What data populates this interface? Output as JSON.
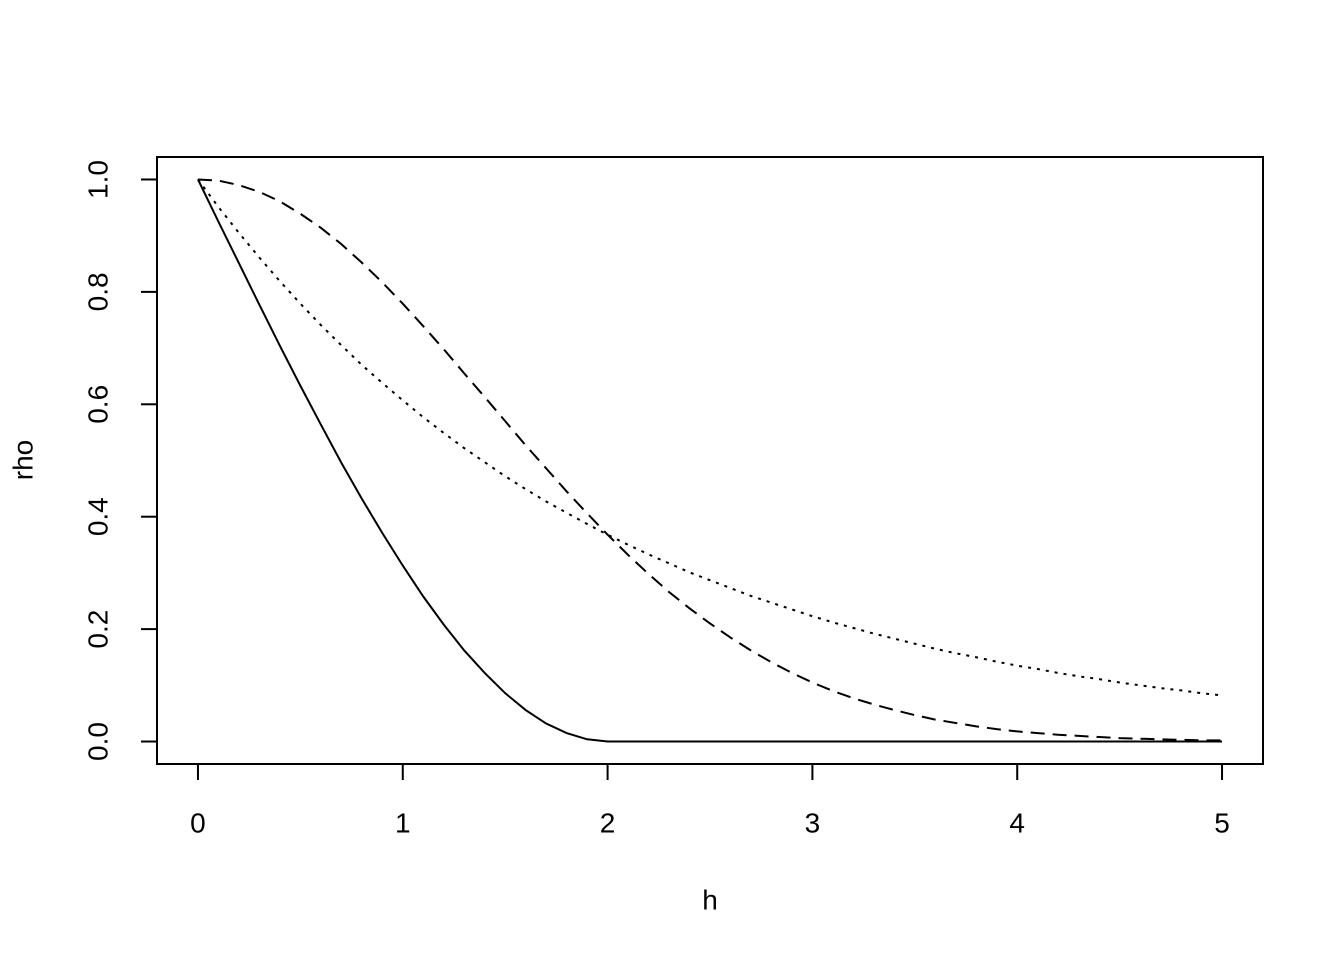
{
  "chart_data": {
    "type": "line",
    "x_label": "h",
    "y_label": "rho",
    "x": [
      0,
      0.1,
      0.2,
      0.3,
      0.4,
      0.5,
      0.6,
      0.7,
      0.8,
      0.9,
      1.0,
      1.1,
      1.2,
      1.3,
      1.4,
      1.5,
      1.6,
      1.7,
      1.8,
      1.9,
      2.0,
      2.1,
      2.2,
      2.3,
      2.4,
      2.5,
      2.6,
      2.7,
      2.8,
      2.9,
      3.0,
      3.1,
      3.2,
      3.3,
      3.4,
      3.5,
      3.6,
      3.7,
      3.8,
      3.9,
      4.0,
      4.1,
      4.2,
      4.3,
      4.4,
      4.5,
      4.6,
      4.7,
      4.8,
      4.9,
      5.0
    ],
    "series": [
      {
        "color": "#000000",
        "dash": "solid",
        "values": [
          1,
          0.925,
          0.851,
          0.777,
          0.704,
          0.633,
          0.564,
          0.496,
          0.432,
          0.371,
          0.313,
          0.258,
          0.208,
          0.162,
          0.122,
          0.086,
          0.056,
          0.032,
          0.015,
          0.004,
          0,
          0,
          0,
          0,
          0,
          0,
          0,
          0,
          0,
          0,
          0,
          0,
          0,
          0,
          0,
          0,
          0,
          0,
          0,
          0,
          0,
          0,
          0,
          0,
          0,
          0,
          0,
          0,
          0,
          0,
          0
        ]
      },
      {
        "color": "#000000",
        "dash": "dashed",
        "values": [
          1,
          0.998,
          0.99,
          0.978,
          0.961,
          0.939,
          0.914,
          0.885,
          0.852,
          0.817,
          0.779,
          0.739,
          0.698,
          0.655,
          0.613,
          0.57,
          0.527,
          0.486,
          0.445,
          0.406,
          0.368,
          0.332,
          0.298,
          0.266,
          0.237,
          0.21,
          0.185,
          0.162,
          0.141,
          0.122,
          0.105,
          0.09,
          0.077,
          0.066,
          0.056,
          0.047,
          0.039,
          0.033,
          0.027,
          0.022,
          0.018,
          0.015,
          0.012,
          0.01,
          0.008,
          0.006,
          0.005,
          0.004,
          0.003,
          0.002,
          0.002
        ]
      },
      {
        "color": "#000000",
        "dash": "dotted",
        "values": [
          1,
          0.951,
          0.905,
          0.861,
          0.819,
          0.779,
          0.741,
          0.705,
          0.67,
          0.638,
          0.607,
          0.577,
          0.549,
          0.522,
          0.497,
          0.472,
          0.449,
          0.427,
          0.407,
          0.387,
          0.368,
          0.35,
          0.333,
          0.317,
          0.301,
          0.287,
          0.273,
          0.259,
          0.247,
          0.235,
          0.223,
          0.212,
          0.202,
          0.192,
          0.183,
          0.174,
          0.165,
          0.157,
          0.15,
          0.142,
          0.135,
          0.129,
          0.122,
          0.116,
          0.111,
          0.105,
          0.1,
          0.095,
          0.091,
          0.086,
          0.082
        ]
      }
    ],
    "xlim": [
      -0.2,
      5.2
    ],
    "ylim": [
      -0.04,
      1.04
    ],
    "xticks": [
      0,
      1,
      2,
      3,
      4,
      5
    ],
    "yticks": [
      {
        "value": 0,
        "label": "0.0"
      },
      {
        "value": 0.2,
        "label": "0.2"
      },
      {
        "value": 0.4,
        "label": "0.4"
      },
      {
        "value": 0.6,
        "label": "0.6"
      },
      {
        "value": 0.8,
        "label": "0.8"
      },
      {
        "value": 1,
        "label": "1.0"
      }
    ],
    "grid": false
  }
}
